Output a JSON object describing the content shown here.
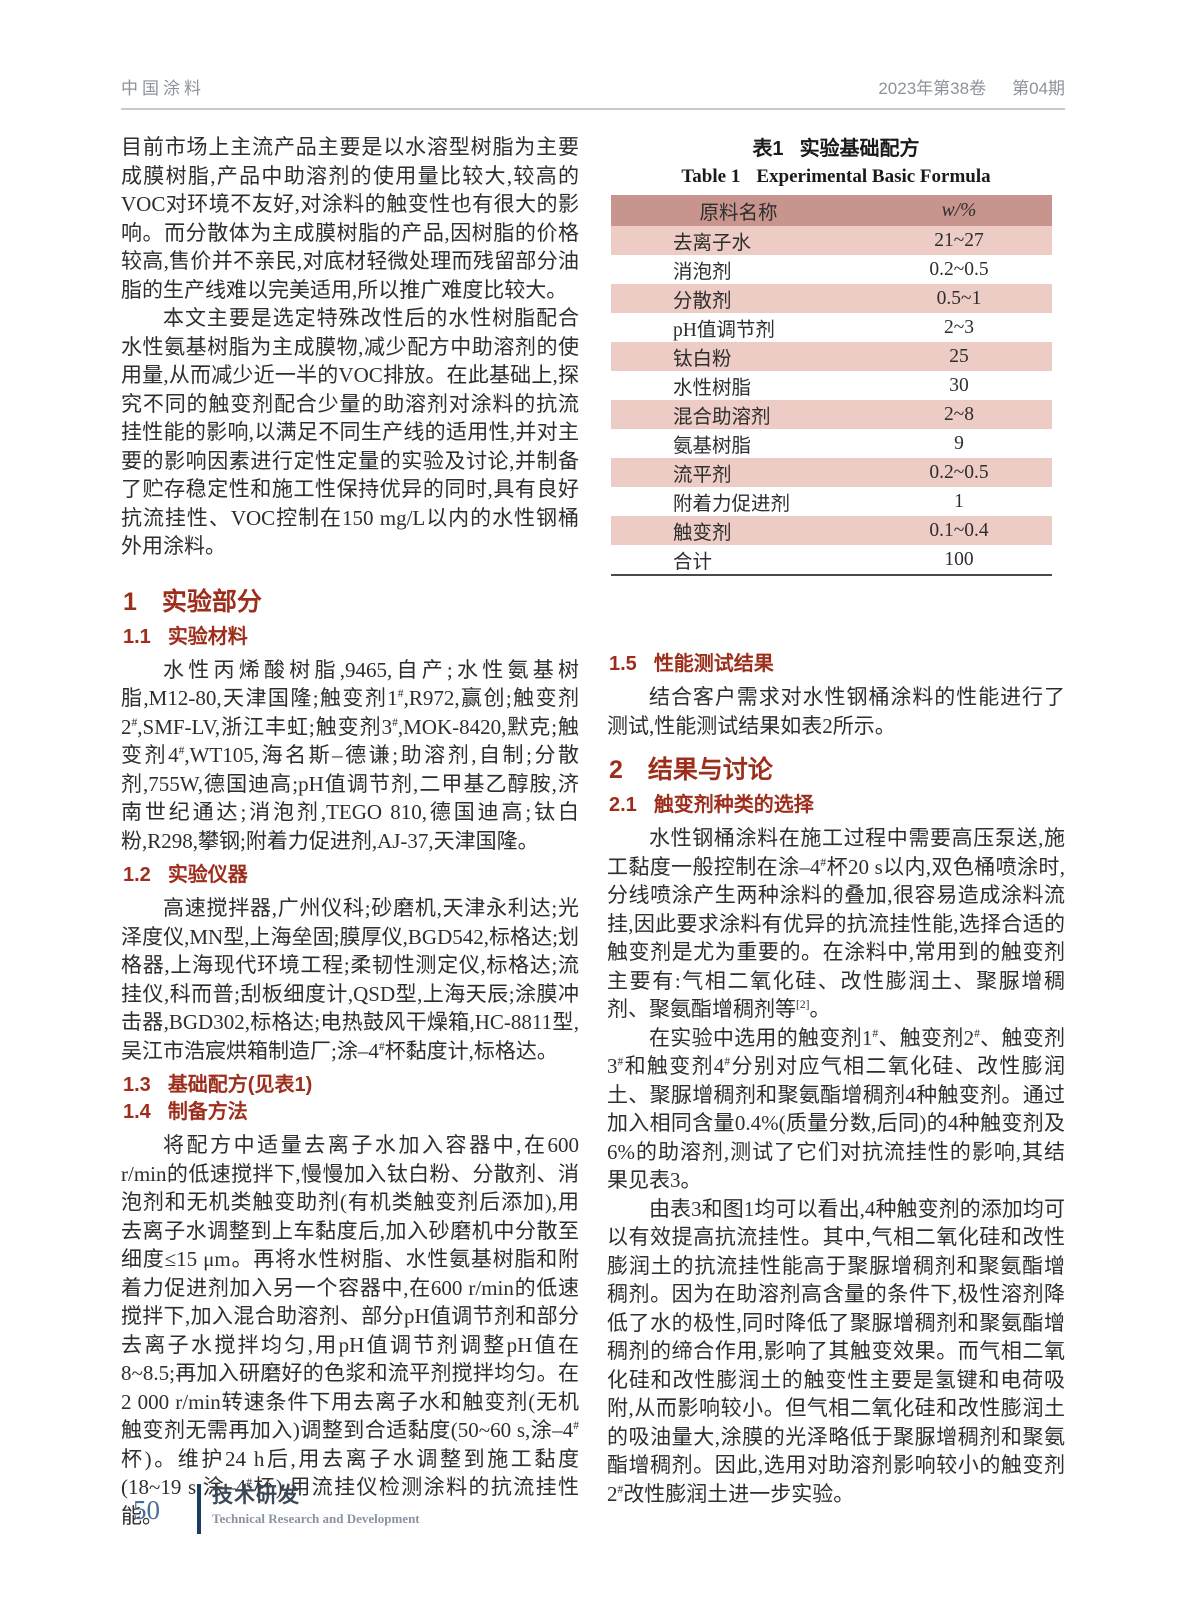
{
  "header": {
    "journal": "中国涂料",
    "volume": "2023年第38卷",
    "issue": "第04期"
  },
  "left_column": {
    "para_intro_1": "目前市场上主流产品主要是以水溶型树脂为主要成膜树脂,产品中助溶剂的使用量比较大,较高的VOC对环境不友好,对涂料的触变性也有很大的影响。而分散体为主成膜树脂的产品,因树脂的价格较高,售价并不亲民,对底材轻微处理而残留部分油脂的生产线难以完美适用,所以推广难度比较大。",
    "para_intro_2": "本文主要是选定特殊改性后的水性树脂配合水性氨基树脂为主成膜物,减少配方中助溶剂的使用量,从而减少近一半的VOC排放。在此基础上,探究不同的触变剂配合少量的助溶剂对涂料的抗流挂性能的影响,以满足不同生产线的适用性,并对主要的影响因素进行定性定量的实验及讨论,并制备了贮存稳定性和施工性保持优异的同时,具有良好抗流挂性、VOC控制在150 mg/L以内的水性钢桶外用涂料。",
    "section_1": {
      "num": "1",
      "title": "实验部分"
    },
    "section_1_1": {
      "num": "1.1",
      "title": "实验材料"
    },
    "para_materials": "水性丙烯酸树脂,9465,自产;水性氨基树脂,M12-80,天津国隆;触变剂1^{#},R972,赢创;触变剂2^{#},SMF-LV,浙江丰虹;触变剂3^{#},MOK-8420,默克;触变剂4^{#},WT105,海名斯–德谦;助溶剂,自制;分散剂,755W,德国迪高;pH值调节剂,二甲基乙醇胺,济南世纪通达;消泡剂,TEGO 810,德国迪高;钛白粉,R298,攀钢;附着力促进剂,AJ-37,天津国隆。",
    "section_1_2": {
      "num": "1.2",
      "title": "实验仪器"
    },
    "para_instruments": "高速搅拌器,广州仪科;砂磨机,天津永利达;光泽度仪,MN型,上海垒固;膜厚仪,BGD542,标格达;划格器,上海现代环境工程;柔韧性测定仪,标格达;流挂仪,科而普;刮板细度计,QSD型,上海天辰;涂膜冲击器,BGD302,标格达;电热鼓风干燥箱,HC-8811型,吴江市浩宸烘箱制造厂;涂–4^{#}杯黏度计,标格达。",
    "section_1_3": {
      "num": "1.3",
      "title": "基础配方(见表1)"
    },
    "section_1_4": {
      "num": "1.4",
      "title": "制备方法"
    },
    "para_method": "将配方中适量去离子水加入容器中,在600 r/min的低速搅拌下,慢慢加入钛白粉、分散剂、消泡剂和无机类触变助剂(有机类触变剂后添加),用去离子水调整到上车黏度后,加入砂磨机中分散至细度≤15 μm。再将水性树脂、水性氨基树脂和附着力促进剂加入另一个容器中,在600 r/min的低速搅拌下,加入混合助溶剂、部分pH值调节剂和部分去离子水搅拌均匀,用pH值调节剂调整pH值在8~8.5;再加入研磨好的色浆和流平剂搅拌均匀。在2 000 r/min转速条件下用去离子水和触变剂(无机触变剂无需再加入)调整到合适黏度(50~60 s,涂–4^{#}杯)。维护24 h后,用去离子水调整到施工黏度(18~19 s,涂–4^{#}杯),用流挂仪检测涂料的抗流挂性能。"
  },
  "table1": {
    "caption_zh_label": "表1",
    "caption_zh_title": "实验基础配方",
    "caption_en_label": "Table 1",
    "caption_en_title": "Experimental Basic Formula",
    "col_name_header": "原料名称",
    "col_value_header": "w/%",
    "rows": [
      {
        "name": "去离子水",
        "value": "21~27"
      },
      {
        "name": "消泡剂",
        "value": "0.2~0.5"
      },
      {
        "name": "分散剂",
        "value": "0.5~1"
      },
      {
        "name": "pH值调节剂",
        "value": "2~3"
      },
      {
        "name": "钛白粉",
        "value": "25"
      },
      {
        "name": "水性树脂",
        "value": "30"
      },
      {
        "name": "混合助溶剂",
        "value": "2~8"
      },
      {
        "name": "氨基树脂",
        "value": "9"
      },
      {
        "name": "流平剂",
        "value": "0.2~0.5"
      },
      {
        "name": "附着力促进剂",
        "value": "1"
      },
      {
        "name": "触变剂",
        "value": "0.1~0.4"
      },
      {
        "name": "合计",
        "value": "100"
      }
    ]
  },
  "right_column": {
    "section_1_5": {
      "num": "1.5",
      "title": "性能测试结果"
    },
    "para_performance": "结合客户需求对水性钢桶涂料的性能进行了测试,性能测试结果如表2所示。",
    "section_2": {
      "num": "2",
      "title": "结果与讨论"
    },
    "section_2_1": {
      "num": "2.1",
      "title": "触变剂种类的选择"
    },
    "para_discussion_1": "水性钢桶涂料在施工过程中需要高压泵送,施工黏度一般控制在涂–4^{#}杯20 s以内,双色桶喷涂时,分线喷涂产生两种涂料的叠加,很容易造成涂料流挂,因此要求涂料有优异的抗流挂性能,选择合适的触变剂是尤为重要的。在涂料中,常用到的触变剂主要有:气相二氧化硅、改性膨润土、聚脲增稠剂、聚氨酯增稠剂等^{[2]}。",
    "para_discussion_2": "在实验中选用的触变剂1^{#}、触变剂2^{#}、触变剂3^{#}和触变剂4^{#}分别对应气相二氧化硅、改性膨润土、聚脲增稠剂和聚氨酯增稠剂4种触变剂。通过加入相同含量0.4%(质量分数,后同)的4种触变剂及6%的助溶剂,测试了它们对抗流挂性的影响,其结果见表3。",
    "para_discussion_3": "由表3和图1均可以看出,4种触变剂的添加均可以有效提高抗流挂性。其中,气相二氧化硅和改性膨润土的抗流挂性能高于聚脲增稠剂和聚氨酯增稠剂。因为在助溶剂高含量的条件下,极性溶剂降低了水的极性,同时降低了聚脲增稠剂和聚氨酯增稠剂的缔合作用,影响了其触变效果。而气相二氧化硅和改性膨润土的触变性主要是氢键和电荷吸附,从而影响较小。但气相二氧化硅和改性膨润土的吸油量大,涂膜的光泽略低于聚脲增稠剂和聚氨酯增稠剂。因此,选用对助溶剂影响较小的触变剂2^{#}改性膨润土进一步实验。"
  },
  "footer": {
    "page_number": "50",
    "column_title": "技术研发",
    "column_title_en": "Technical Research and Development"
  },
  "colors": {
    "heading_red": "#9d2e1c",
    "table_header_bg": "#c8958e",
    "table_stripe_bg": "#ecccc5",
    "footer_accent": "#1c3b63"
  }
}
